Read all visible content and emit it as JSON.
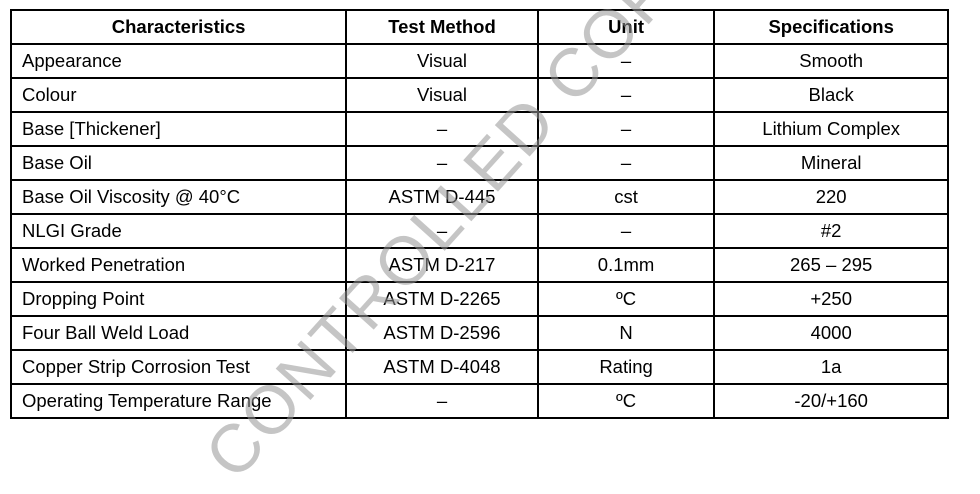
{
  "table": {
    "headers": [
      "Characteristics",
      "Test Method",
      "Unit",
      "Specifications"
    ],
    "rows": [
      [
        "Appearance",
        "Visual",
        "–",
        "Smooth"
      ],
      [
        "Colour",
        "Visual",
        "–",
        "Black"
      ],
      [
        "Base [Thickener]",
        "–",
        "–",
        "Lithium Complex"
      ],
      [
        "Base Oil",
        "–",
        "–",
        "Mineral"
      ],
      [
        "Base Oil Viscosity @ 40°C",
        "ASTM D-445",
        "cst",
        "220"
      ],
      [
        "NLGI Grade",
        "–",
        "–",
        "#2"
      ],
      [
        "Worked Penetration",
        "ASTM D-217",
        "0.1mm",
        "265 – 295"
      ],
      [
        "Dropping Point",
        "ASTM D-2265",
        "ºC",
        "+250"
      ],
      [
        "Four Ball Weld Load",
        "ASTM D-2596",
        "N",
        "4000"
      ],
      [
        "Copper Strip Corrosion Test",
        "ASTM D-4048",
        "Rating",
        "1a"
      ],
      [
        "Operating Temperature Range",
        "–",
        "ºC",
        "-20/+160"
      ]
    ]
  },
  "watermark": "CONTROLLED COPY"
}
